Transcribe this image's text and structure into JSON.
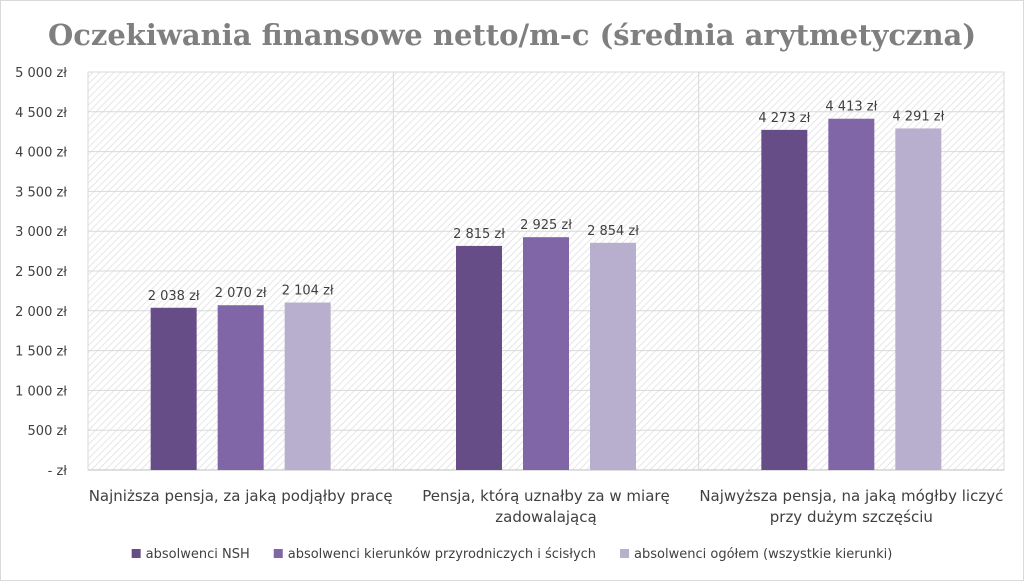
{
  "chart_data": {
    "type": "bar",
    "title": "Oczekiwania finansowe netto/m-c (średnia arytmetyczna)",
    "xlabel": "",
    "ylabel": "",
    "ylim": [
      0,
      5000
    ],
    "ytick_values": [
      0,
      500,
      1000,
      1500,
      2000,
      2500,
      3000,
      3500,
      4000,
      4500,
      5000
    ],
    "ytick_labels": [
      "-   zł",
      "500 zł",
      "1 000 zł",
      "1 500 zł",
      "2 000 zł",
      "2 500 zł",
      "3 000 zł",
      "3 500 zł",
      "4 000 zł",
      "4 500 zł",
      "5 000 zł"
    ],
    "grid": true,
    "legend_position": "bottom",
    "categories": [
      [
        "Najniższa pensja, za jaką podjąłby pracę"
      ],
      [
        "Pensja, którą uznałby za w miarę",
        "zadowalającą"
      ],
      [
        "Najwyższa pensja, na jaką mógłby liczyć",
        "przy dużym szczęściu"
      ]
    ],
    "series": [
      {
        "name": "absolwenci NSH",
        "color": "#664d88",
        "values": [
          2038,
          2815,
          4273
        ],
        "labels": [
          "2 038 zł",
          "2 815 zł",
          "4 273 zł"
        ]
      },
      {
        "name": "absolwenci kierunków przyrodniczych i ścisłych",
        "color": "#8066a6",
        "values": [
          2070,
          2925,
          4413
        ],
        "labels": [
          "2 070 zł",
          "2 925 zł",
          "4 413 zł"
        ]
      },
      {
        "name": "absolwenci ogółem (wszystkie kierunki)",
        "color": "#b8aecd",
        "values": [
          2104,
          2854,
          4291
        ],
        "labels": [
          "2 104 zł",
          "2 854 zł",
          "4 291 zł"
        ]
      }
    ]
  }
}
